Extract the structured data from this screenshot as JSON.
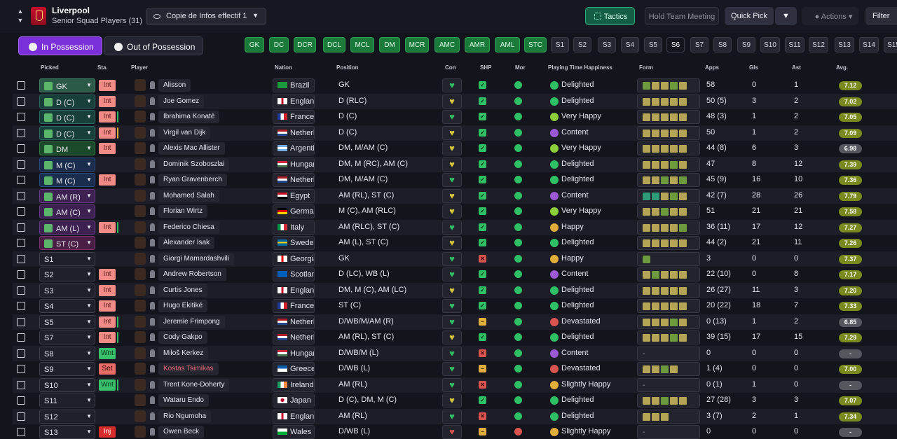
{
  "club": {
    "name": "Liverpool",
    "subtitle": "Senior Squad Players (31)"
  },
  "view_selector": {
    "label": "Copie de Infos effectif 1"
  },
  "toolbar": {
    "tactics": "Tactics",
    "hold_meeting": "Hold Team Meeting",
    "quick_pick": "Quick Pick",
    "actions": "Actions",
    "filter": "Filter"
  },
  "tabs": {
    "in_possession": "In Possession",
    "out_of_possession": "Out of Possession"
  },
  "position_chips": [
    "GK",
    "DC",
    "DCR",
    "DCL",
    "MCL",
    "DM",
    "MCR",
    "AMC",
    "AMR",
    "AML",
    "STC",
    "S1",
    "S2",
    "S3",
    "S4",
    "S5",
    "S6",
    "S7",
    "S8",
    "S9",
    "S10",
    "S11",
    "S12",
    "S13",
    "S14",
    "S15"
  ],
  "headers": {
    "picked": "Picked",
    "sta": "Sta.",
    "player": "Player",
    "nation": "Nation",
    "position": "Position",
    "con": "Con",
    "shp": "SHP",
    "mor": "Mor",
    "pth": "Playing Time Happiness",
    "form": "Form",
    "apps": "Apps",
    "gls": "Gls",
    "ast": "Ast",
    "avg": "Avg."
  },
  "players": [
    {
      "pick": "GK",
      "sta": "Int",
      "name": "Alisson",
      "nation": "Brazil",
      "pos": "GK",
      "happiness": "Delighted",
      "apps": "58",
      "gls": "0",
      "ast": "1",
      "avg": "7.12"
    },
    {
      "pick": "D (C)",
      "sta": "Int",
      "name": "Joe Gomez",
      "nation": "England",
      "pos": "D (RLC)",
      "happiness": "Delighted",
      "apps": "50 (5)",
      "gls": "3",
      "ast": "2",
      "avg": "7.02"
    },
    {
      "pick": "D (C)",
      "sta": "Int",
      "name": "Ibrahima Konaté",
      "nation": "France",
      "pos": "D (C)",
      "happiness": "Very Happy",
      "apps": "48 (3)",
      "gls": "1",
      "ast": "2",
      "avg": "7.05"
    },
    {
      "pick": "D (C)",
      "sta": "Int",
      "name": "Virgil van Dijk",
      "nation": "Netherlan…",
      "pos": "D (C)",
      "happiness": "Content",
      "apps": "50",
      "gls": "1",
      "ast": "2",
      "avg": "7.09"
    },
    {
      "pick": "DM",
      "sta": "Int",
      "name": "Alexis Mac Allister",
      "nation": "Argentina",
      "pos": "DM, M/AM (C)",
      "happiness": "Very Happy",
      "apps": "44 (8)",
      "gls": "6",
      "ast": "3",
      "avg": "6.98"
    },
    {
      "pick": "M (C)",
      "sta": "",
      "name": "Dominik Szoboszlai",
      "nation": "Hungary",
      "pos": "DM, M (RC), AM (C)",
      "happiness": "Delighted",
      "apps": "47",
      "gls": "8",
      "ast": "12",
      "avg": "7.39"
    },
    {
      "pick": "M (C)",
      "sta": "Int",
      "name": "Ryan Gravenberch",
      "nation": "Netherlan…",
      "pos": "DM, M/AM (C)",
      "happiness": "Delighted",
      "apps": "45 (9)",
      "gls": "16",
      "ast": "10",
      "avg": "7.36"
    },
    {
      "pick": "AM (R)",
      "sta": "",
      "name": "Mohamed Salah",
      "nation": "Egypt",
      "pos": "AM (RL), ST (C)",
      "happiness": "Content",
      "apps": "42 (7)",
      "gls": "28",
      "ast": "26",
      "avg": "7.79"
    },
    {
      "pick": "AM (C)",
      "sta": "",
      "name": "Florian Wirtz",
      "nation": "Germany",
      "pos": "M (C), AM (RLC)",
      "happiness": "Very Happy",
      "apps": "51",
      "gls": "21",
      "ast": "21",
      "avg": "7.58"
    },
    {
      "pick": "AM (L)",
      "sta": "Int",
      "name": "Federico Chiesa",
      "nation": "Italy",
      "pos": "AM (RLC), ST (C)",
      "happiness": "Happy",
      "apps": "36 (11)",
      "gls": "17",
      "ast": "12",
      "avg": "7.27"
    },
    {
      "pick": "ST (C)",
      "sta": "",
      "name": "Alexander Isak",
      "nation": "Sweden",
      "pos": "AM (L), ST (C)",
      "happiness": "Delighted",
      "apps": "44 (2)",
      "gls": "21",
      "ast": "11",
      "avg": "7.26"
    },
    {
      "pick": "S1",
      "sta": "",
      "name": "Giorgi Mamardashvili",
      "nation": "Georgia",
      "pos": "GK",
      "happiness": "Happy",
      "apps": "3",
      "gls": "0",
      "ast": "0",
      "avg": "7.37"
    },
    {
      "pick": "S2",
      "sta": "Int",
      "name": "Andrew Robertson",
      "nation": "Scotland",
      "pos": "D (LC), WB (L)",
      "happiness": "Content",
      "apps": "22 (10)",
      "gls": "0",
      "ast": "8",
      "avg": "7.17"
    },
    {
      "pick": "S3",
      "sta": "Int",
      "name": "Curtis Jones",
      "nation": "England",
      "pos": "DM, M (C), AM (LC)",
      "happiness": "Delighted",
      "apps": "26 (27)",
      "gls": "11",
      "ast": "3",
      "avg": "7.20"
    },
    {
      "pick": "S4",
      "sta": "Int",
      "name": "Hugo Ekitiké",
      "nation": "France",
      "pos": "ST (C)",
      "happiness": "Delighted",
      "apps": "20 (22)",
      "gls": "18",
      "ast": "7",
      "avg": "7.33"
    },
    {
      "pick": "S5",
      "sta": "Int",
      "name": "Jeremie Frimpong",
      "nation": "Netherlan…",
      "pos": "D/WB/M/AM (R)",
      "happiness": "Devastated",
      "apps": "0 (13)",
      "gls": "1",
      "ast": "2",
      "avg": "6.85"
    },
    {
      "pick": "S7",
      "sta": "Int",
      "name": "Cody Gakpo",
      "nation": "Netherlan…",
      "pos": "AM (RL), ST (C)",
      "happiness": "Delighted",
      "apps": "39 (15)",
      "gls": "17",
      "ast": "15",
      "avg": "7.29"
    },
    {
      "pick": "S8",
      "sta": "Wnt",
      "name": "Miloš Kerkez",
      "nation": "Hungary",
      "pos": "D/WB/M (L)",
      "happiness": "Content",
      "apps": "0",
      "gls": "0",
      "ast": "0",
      "avg": "-"
    },
    {
      "pick": "S9",
      "sta": "Set",
      "name": "Kostas Tsimikas",
      "nation": "Greece",
      "pos": "D/WB (L)",
      "happiness": "Devastated",
      "apps": "1 (4)",
      "gls": "0",
      "ast": "0",
      "avg": "7.00"
    },
    {
      "pick": "S10",
      "sta": "Wnt",
      "name": "Trent Kone-Doherty",
      "nation": "Ireland",
      "pos": "AM (RL)",
      "happiness": "Slightly Happy",
      "apps": "0 (1)",
      "gls": "1",
      "ast": "0",
      "avg": "-"
    },
    {
      "pick": "S11",
      "sta": "",
      "name": "Wataru Endo",
      "nation": "Japan",
      "pos": "D (C), DM, M (C)",
      "happiness": "Delighted",
      "apps": "27 (28)",
      "gls": "3",
      "ast": "3",
      "avg": "7.07"
    },
    {
      "pick": "S12",
      "sta": "",
      "name": "Rio Ngumoha",
      "nation": "England",
      "pos": "AM (RL)",
      "happiness": "Delighted",
      "apps": "3 (7)",
      "gls": "2",
      "ast": "1",
      "avg": "7.34"
    },
    {
      "pick": "S13",
      "sta": "Inj",
      "name": "Owen Beck",
      "nation": "Wales",
      "pos": "D/WB (L)",
      "happiness": "Slightly Happy",
      "apps": "0",
      "gls": "0",
      "ast": "0",
      "avg": "-"
    }
  ],
  "form_empty": "-"
}
